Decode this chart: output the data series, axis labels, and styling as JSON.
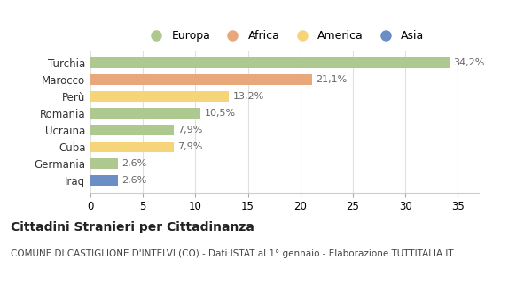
{
  "categories": [
    "Turchia",
    "Marocco",
    "Perù",
    "Romania",
    "Ucraina",
    "Cuba",
    "Germania",
    "Iraq"
  ],
  "values": [
    34.2,
    21.1,
    13.2,
    10.5,
    7.9,
    7.9,
    2.6,
    2.6
  ],
  "labels": [
    "34,2%",
    "21,1%",
    "13,2%",
    "10,5%",
    "7,9%",
    "7,9%",
    "2,6%",
    "2,6%"
  ],
  "colors": [
    "#adc990",
    "#e8a87c",
    "#f5d47a",
    "#adc990",
    "#adc990",
    "#f5d47a",
    "#adc990",
    "#6b8ec4"
  ],
  "legend": [
    {
      "label": "Europa",
      "color": "#adc990"
    },
    {
      "label": "Africa",
      "color": "#e8a87c"
    },
    {
      "label": "America",
      "color": "#f5d47a"
    },
    {
      "label": "Asia",
      "color": "#6b8ec4"
    }
  ],
  "xlim": [
    0,
    37
  ],
  "xticks": [
    0,
    5,
    10,
    15,
    20,
    25,
    30,
    35
  ],
  "title": "Cittadini Stranieri per Cittadinanza",
  "subtitle": "COMUNE DI CASTIGLIONE D'INTELVI (CO) - Dati ISTAT al 1° gennaio - Elaborazione TUTTITALIA.IT",
  "background_color": "#ffffff",
  "plot_bg_color": "#ffffff",
  "bar_height": 0.65,
  "label_fontsize": 8,
  "tick_fontsize": 8.5,
  "legend_fontsize": 9,
  "title_fontsize": 10,
  "subtitle_fontsize": 7.5,
  "grid_color": "#e0e0e0",
  "label_color": "#666666"
}
